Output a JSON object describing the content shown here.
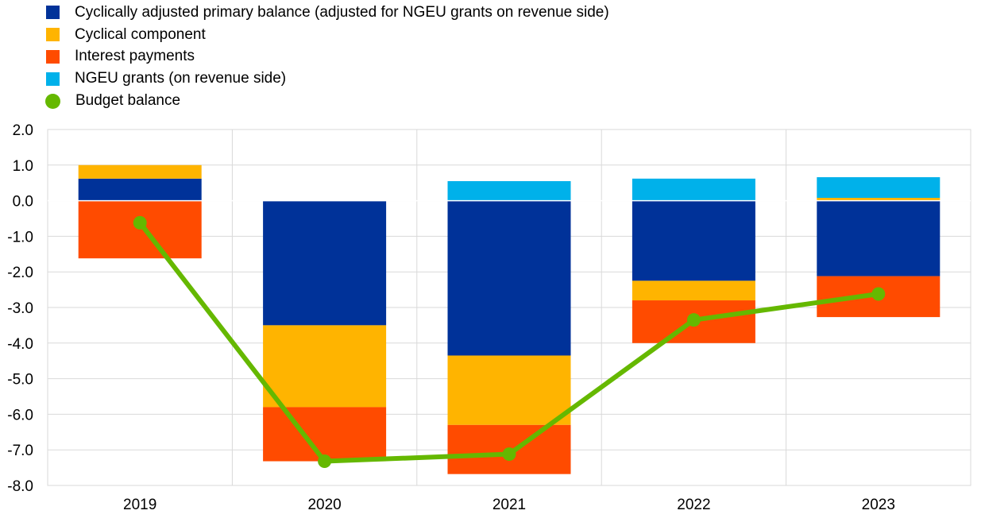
{
  "chart_data": {
    "type": "bar",
    "stacked": true,
    "title": "",
    "xlabel": "",
    "ylabel": "",
    "categories": [
      "2019",
      "2020",
      "2021",
      "2022",
      "2023"
    ],
    "ylim": [
      -8.0,
      2.0
    ],
    "yticks": [
      "2.0",
      "1.0",
      "0.0",
      "-1.0",
      "-2.0",
      "-3.0",
      "-4.0",
      "-5.0",
      "-6.0",
      "-7.0",
      "-8.0"
    ],
    "grid": true,
    "legend_position": "top-left",
    "series": [
      {
        "name": "Cyclically adjusted primary balance (adjusted for NGEU grants on revenue side)",
        "color": "#003299",
        "values": [
          0.62,
          -3.5,
          -4.35,
          -2.25,
          -2.12
        ]
      },
      {
        "name": "Cyclical component",
        "color": "#FFB400",
        "values": [
          0.38,
          -2.3,
          -1.95,
          -0.55,
          0.08
        ]
      },
      {
        "name": "Interest payments",
        "color": "#FF4B00",
        "values": [
          -1.62,
          -1.52,
          -1.38,
          -1.2,
          -1.15
        ]
      },
      {
        "name": "NGEU grants (on revenue side)",
        "color": "#00B1EA",
        "values": [
          0.0,
          0.0,
          0.55,
          0.62,
          0.58
        ]
      }
    ],
    "line": {
      "name": "Budget balance",
      "color": "#65B800",
      "values": [
        -0.62,
        -7.32,
        -7.12,
        -3.35,
        -2.62
      ]
    }
  }
}
